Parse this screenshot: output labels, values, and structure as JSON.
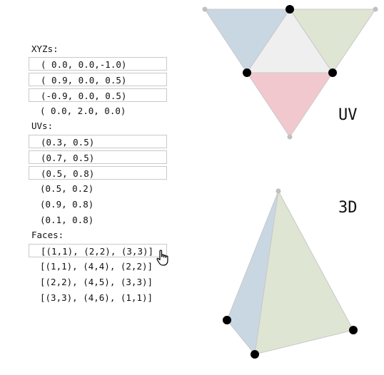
{
  "xyzs": {
    "label": "XYZs:",
    "items": [
      "( 0.0, 0.0,-1.0)",
      "( 0.9, 0.0, 0.5)",
      "(-0.9, 0.0, 0.5)",
      "( 0.0, 2.0, 0.0)"
    ]
  },
  "uvs": {
    "label": "UVs:",
    "items": [
      "(0.3, 0.5)",
      "(0.7, 0.5)",
      "(0.5, 0.8)",
      "(0.5, 0.2)",
      "(0.9, 0.8)",
      "(0.1, 0.8)"
    ]
  },
  "faces": {
    "label": "Faces:",
    "items": [
      "[(1,1), (2,2), (3,3)]",
      "[(1,1), (4,4), (2,2)]",
      "[(2,2), (4,5), (3,3)]",
      "[(3,3), (4,6), (1,1)]"
    ]
  },
  "views": {
    "uv_label": "UV",
    "d3_label": "3D"
  },
  "colors": {
    "face_blue": "#c9d7e3",
    "face_green": "#dfe5d3",
    "face_red": "#f2c8cf",
    "face_gray": "#efefef",
    "edge": "#c8c8c8",
    "vertex": "#000000"
  },
  "cursor_icon": "hand-pointer-icon"
}
